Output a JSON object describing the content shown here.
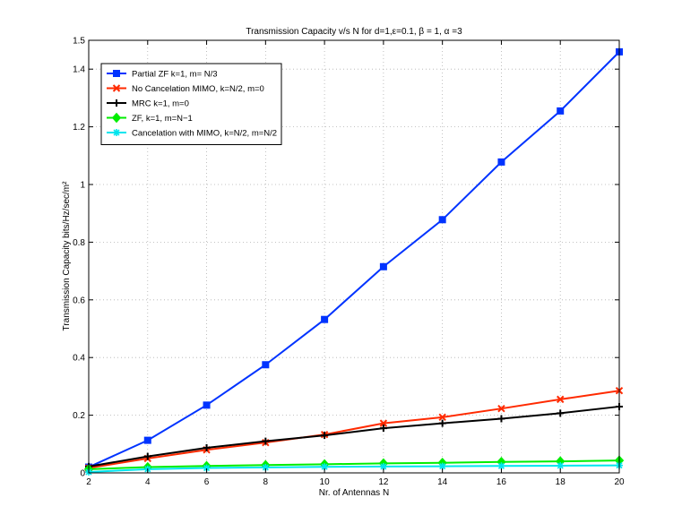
{
  "chart_data": {
    "type": "line",
    "title": "Transmission Capacity v/s N for d=1,ε=0.1, β = 1, α =3",
    "xlabel": "Nr. of Antennas N",
    "ylabel": "Transmission Capacity bits/Hz/sec/m²",
    "xlim": [
      2,
      20
    ],
    "ylim": [
      0,
      1.5
    ],
    "xticks": [
      2,
      4,
      6,
      8,
      10,
      12,
      14,
      16,
      18,
      20
    ],
    "xtick_labels": [
      "2",
      "4",
      "6",
      "8",
      "10",
      "12",
      "14",
      "16",
      "18",
      "20"
    ],
    "yticks": [
      0,
      0.2,
      0.4,
      0.6,
      0.8,
      1,
      1.2,
      1.4,
      1.5
    ],
    "ytick_labels": [
      "0",
      "0.2",
      "0.4",
      "0.6",
      "0.8",
      "1",
      "1.2",
      "1.4",
      "1.5"
    ],
    "grid": true,
    "legend_position": "top-left",
    "x": [
      2,
      4,
      6,
      8,
      10,
      12,
      14,
      16,
      18,
      20
    ],
    "series": [
      {
        "name": "Partial ZF k=1, m= N/3",
        "color": "#0033ff",
        "marker": "square",
        "values": [
          0.02,
          0.113,
          0.235,
          0.375,
          0.532,
          0.715,
          0.878,
          1.078,
          1.255,
          1.46
        ]
      },
      {
        "name": "No Cancelation MIMO, k=N/2, m=0",
        "color": "#ff2a00",
        "marker": "x",
        "values": [
          0.017,
          0.05,
          0.08,
          0.105,
          0.133,
          0.172,
          0.193,
          0.223,
          0.255,
          0.285
        ]
      },
      {
        "name": "MRC k=1, m=0",
        "color": "#000000",
        "marker": "plus",
        "values": [
          0.022,
          0.057,
          0.087,
          0.11,
          0.13,
          0.155,
          0.172,
          0.188,
          0.207,
          0.23
        ]
      },
      {
        "name": "ZF, k=1, m=N−1",
        "color": "#00ee00",
        "marker": "diamond",
        "values": [
          0.013,
          0.02,
          0.024,
          0.027,
          0.03,
          0.033,
          0.035,
          0.038,
          0.04,
          0.043
        ]
      },
      {
        "name": "Cancelation with MIMO, k=N/2, m=N/2",
        "color": "#00e5ee",
        "marker": "star",
        "values": [
          0.003,
          0.013,
          0.017,
          0.019,
          0.021,
          0.022,
          0.023,
          0.024,
          0.025,
          0.026
        ]
      }
    ]
  }
}
